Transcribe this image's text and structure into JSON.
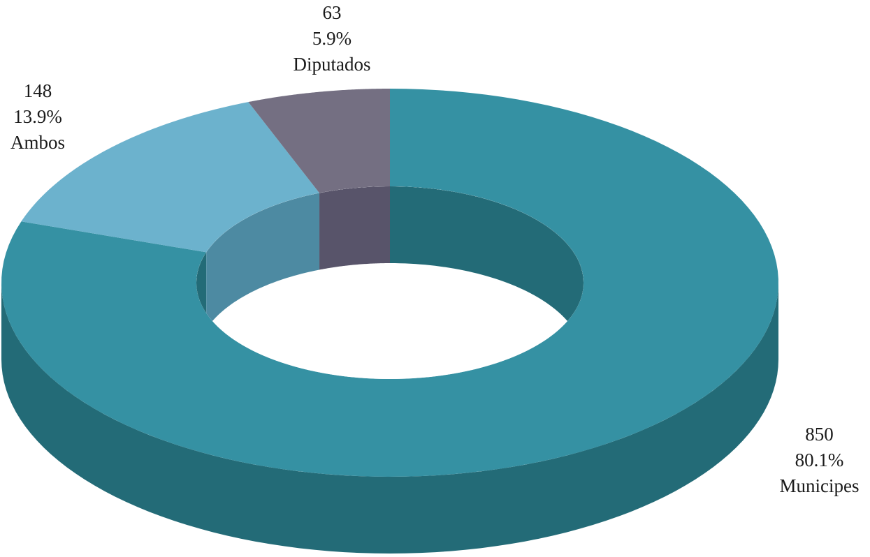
{
  "chart_data": {
    "type": "pie",
    "style": "3d-doughnut",
    "legend": "none",
    "slices": [
      {
        "label": "Municipes",
        "value": 850,
        "percent": "80.1%",
        "color": "#3591a3",
        "dark_color": "#236b77"
      },
      {
        "label": "Ambos",
        "value": 148,
        "percent": "13.9%",
        "color": "#6cb2cd",
        "dark_color": "#4d8aa2"
      },
      {
        "label": "Diputados",
        "value": 63,
        "percent": "5.9%",
        "color": "#746f82",
        "dark_color": "#58546a"
      }
    ]
  }
}
